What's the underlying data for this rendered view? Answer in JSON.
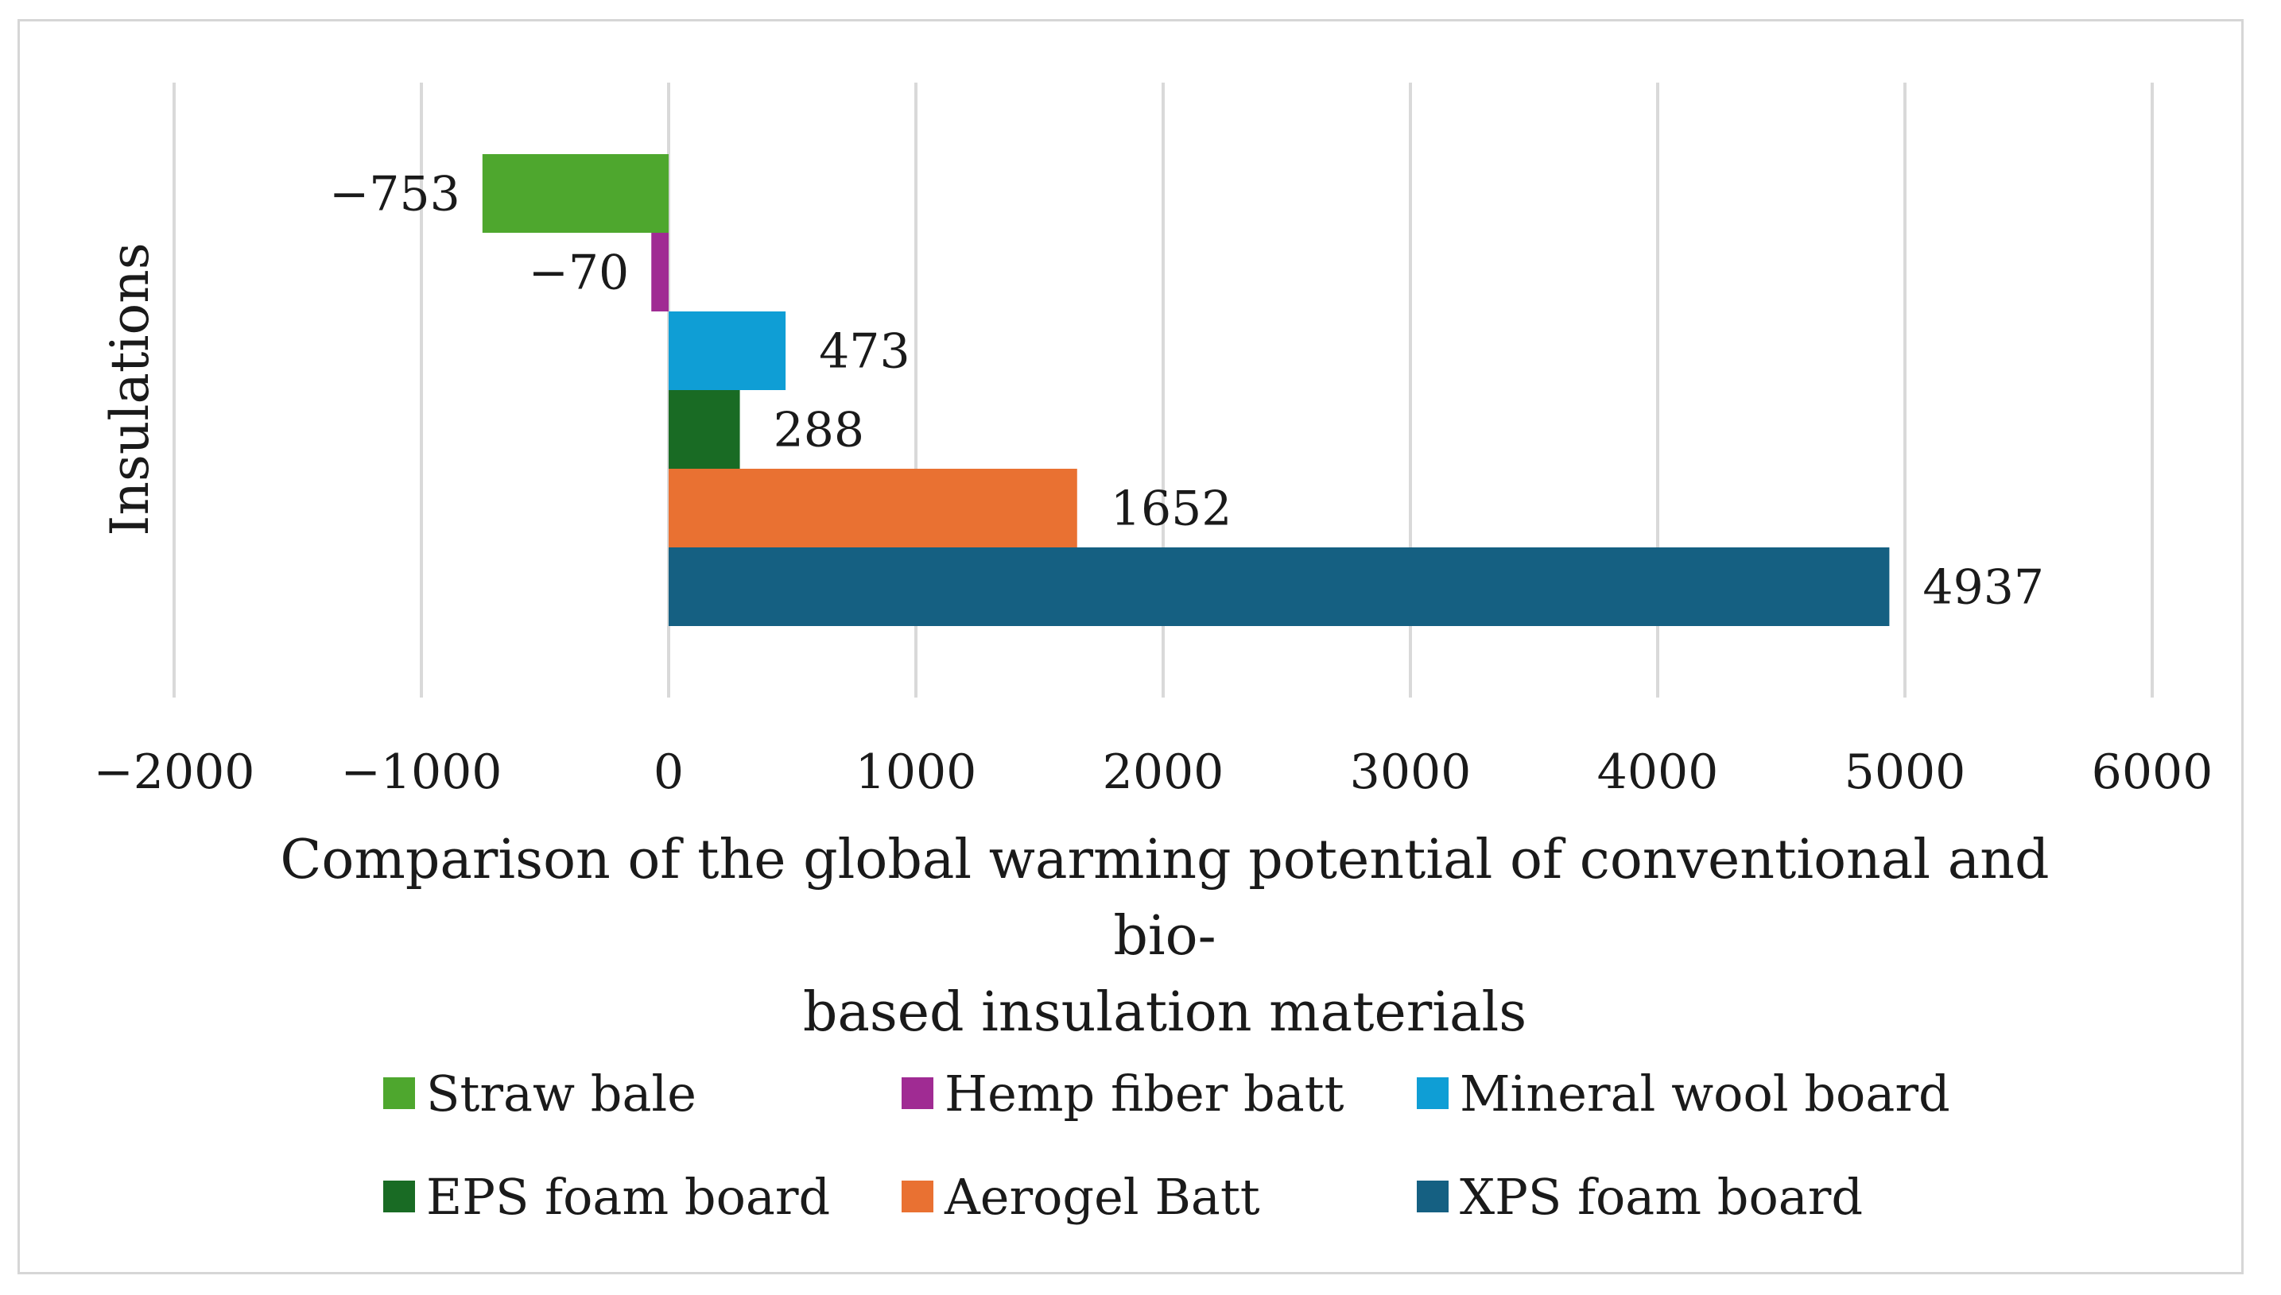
{
  "chart_data": {
    "type": "bar",
    "orientation": "horizontal",
    "title": "",
    "xlabel": "Comparison of the global warming potential of conventional and bio-based insulation materials",
    "xlabel_lines": [
      "Comparison of the global warming potential of conventional and bio-",
      "based insulation materials"
    ],
    "ylabel": "Insulations",
    "xlim": [
      -2000,
      6000
    ],
    "xticks": [
      -2000,
      -1000,
      0,
      1000,
      2000,
      3000,
      4000,
      5000,
      6000
    ],
    "xtick_labels": [
      "−2000",
      "−1000",
      "0",
      "1000",
      "2000",
      "3000",
      "4000",
      "5000",
      "6000"
    ],
    "grid": true,
    "legend_position": "bottom",
    "series": [
      {
        "name": "Straw bale",
        "value": -753,
        "label": "−753",
        "color": "#4ea72e"
      },
      {
        "name": "Hemp fiber batt",
        "value": -70,
        "label": "−70",
        "color": "#a02b93"
      },
      {
        "name": "Mineral wool board",
        "value": 473,
        "label": "473",
        "color": "#0f9ed5"
      },
      {
        "name": "EPS foam board",
        "value": 288,
        "label": "288",
        "color": "#196b24"
      },
      {
        "name": "Aerogel Batt",
        "value": 1652,
        "label": "1652",
        "color": "#e97132"
      },
      {
        "name": "XPS foam board",
        "value": 4937,
        "label": "4937",
        "color": "#156082"
      }
    ]
  }
}
